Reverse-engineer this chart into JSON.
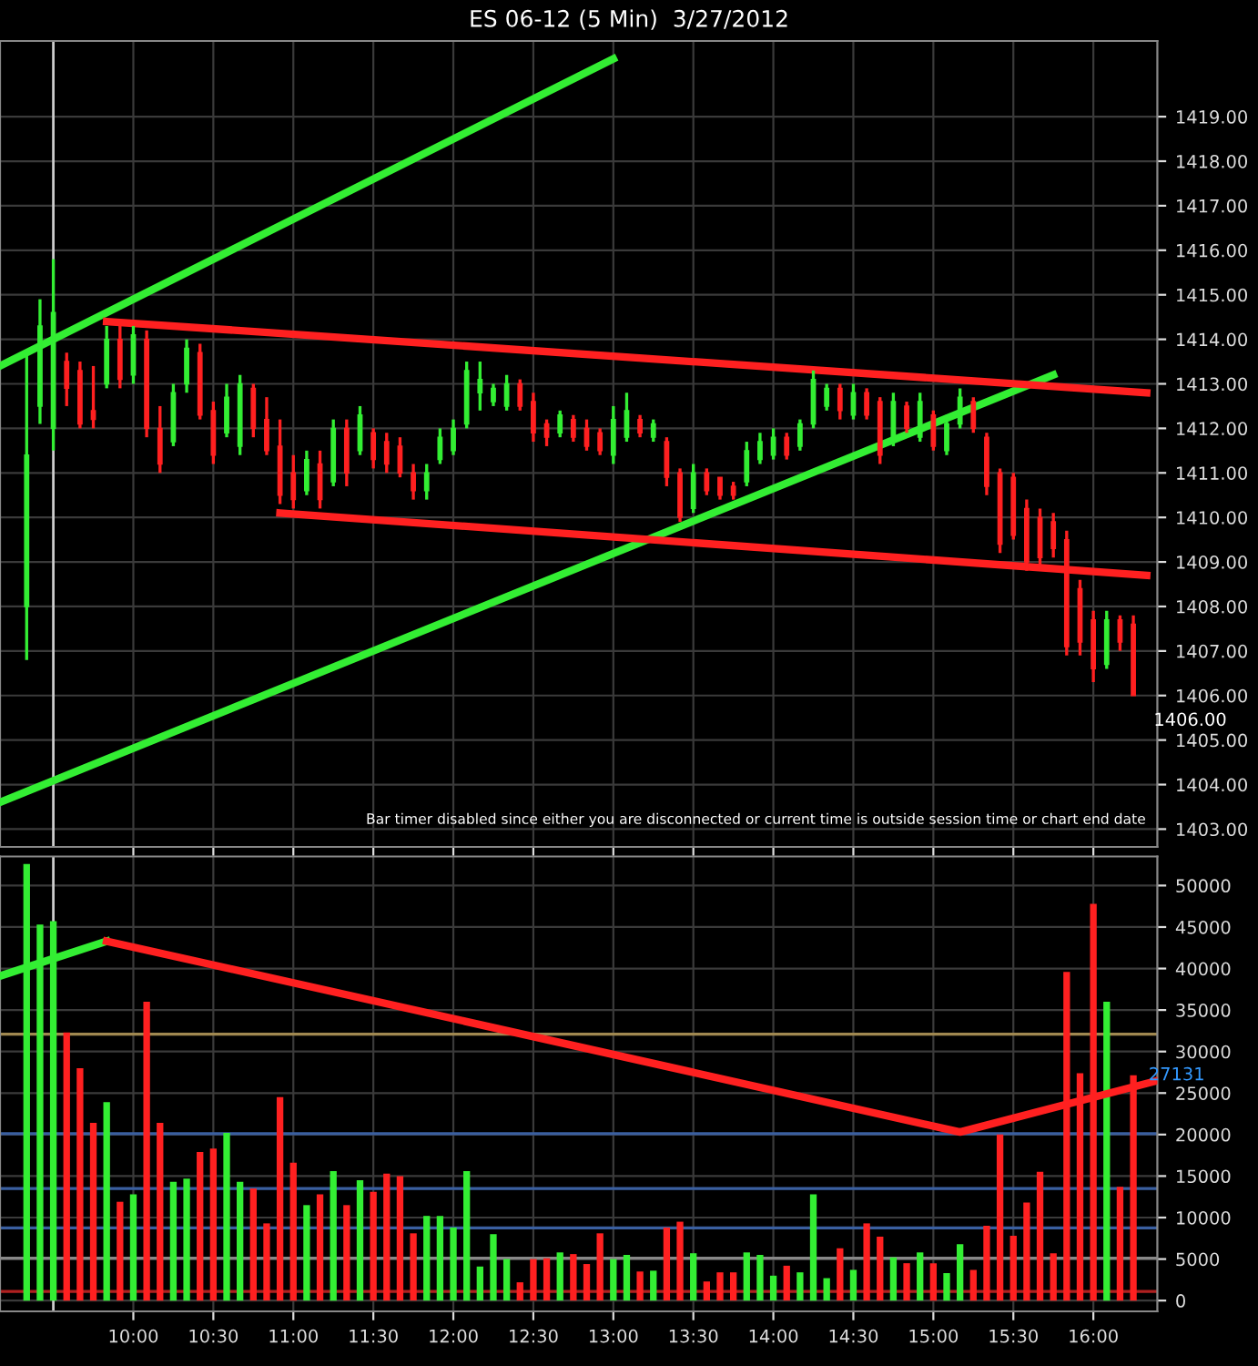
{
  "chart_data": [
    {
      "type": "candlestick",
      "title": "ES 06-12 (5 Min)  3/27/2012",
      "x": [
        "2012-03-27T09:20",
        "2012-03-27T09:25",
        "2012-03-27T09:30",
        "2012-03-27T09:35",
        "2012-03-27T09:40",
        "2012-03-27T09:45",
        "2012-03-27T09:50",
        "2012-03-27T09:55",
        "2012-03-27T10:00",
        "2012-03-27T10:05",
        "2012-03-27T10:10",
        "2012-03-27T10:15",
        "2012-03-27T10:20",
        "2012-03-27T10:25",
        "2012-03-27T10:30",
        "2012-03-27T10:35",
        "2012-03-27T10:40",
        "2012-03-27T10:45",
        "2012-03-27T10:50",
        "2012-03-27T10:55",
        "2012-03-27T11:00",
        "2012-03-27T11:05",
        "2012-03-27T11:10",
        "2012-03-27T11:15",
        "2012-03-27T11:20",
        "2012-03-27T11:25",
        "2012-03-27T11:30",
        "2012-03-27T11:35",
        "2012-03-27T11:40",
        "2012-03-27T11:45",
        "2012-03-27T11:50",
        "2012-03-27T11:55",
        "2012-03-27T12:00",
        "2012-03-27T12:05",
        "2012-03-27T12:10",
        "2012-03-27T12:15",
        "2012-03-27T12:20",
        "2012-03-27T12:25",
        "2012-03-27T12:30",
        "2012-03-27T12:35",
        "2012-03-27T12:40",
        "2012-03-27T12:45",
        "2012-03-27T12:50",
        "2012-03-27T12:55",
        "2012-03-27T13:00",
        "2012-03-27T13:05",
        "2012-03-27T13:10",
        "2012-03-27T13:15",
        "2012-03-27T13:20",
        "2012-03-27T13:25",
        "2012-03-27T13:30",
        "2012-03-27T13:35",
        "2012-03-27T13:40",
        "2012-03-27T13:45",
        "2012-03-27T13:50",
        "2012-03-27T13:55",
        "2012-03-27T14:00",
        "2012-03-27T14:05",
        "2012-03-27T14:10",
        "2012-03-27T14:15",
        "2012-03-27T14:20",
        "2012-03-27T14:25",
        "2012-03-27T14:30",
        "2012-03-27T14:35",
        "2012-03-27T14:40",
        "2012-03-27T14:45",
        "2012-03-27T14:50",
        "2012-03-27T14:55",
        "2012-03-27T15:00",
        "2012-03-27T15:05",
        "2012-03-27T15:10",
        "2012-03-27T15:15",
        "2012-03-27T15:20",
        "2012-03-27T15:25",
        "2012-03-27T15:30",
        "2012-03-27T15:35",
        "2012-03-27T15:40",
        "2012-03-27T15:45",
        "2012-03-27T15:50",
        "2012-03-27T15:55",
        "2012-03-27T16:00",
        "2012-03-27T16:05",
        "2012-03-27T16:10",
        "2012-03-27T16:15"
      ],
      "ohlc": [
        [
          1408.0,
          1413.7,
          1406.8,
          1411.4
        ],
        [
          1412.5,
          1414.9,
          1412.1,
          1414.3
        ],
        [
          1412.0,
          1415.8,
          1411.5,
          1414.6
        ],
        [
          1413.5,
          1413.7,
          1412.5,
          1412.9
        ],
        [
          1413.3,
          1413.5,
          1412.0,
          1412.1
        ],
        [
          1412.4,
          1413.4,
          1412.0,
          1412.2
        ],
        [
          1413.0,
          1414.3,
          1412.9,
          1414.0
        ],
        [
          1414.0,
          1414.3,
          1412.9,
          1413.1
        ],
        [
          1413.2,
          1414.3,
          1413.0,
          1414.1
        ],
        [
          1414.0,
          1414.2,
          1411.8,
          1412.0
        ],
        [
          1412.0,
          1412.5,
          1411.0,
          1411.2
        ],
        [
          1411.7,
          1413.0,
          1411.6,
          1412.8
        ],
        [
          1413.0,
          1414.0,
          1412.8,
          1413.8
        ],
        [
          1413.7,
          1413.9,
          1412.2,
          1412.3
        ],
        [
          1412.4,
          1412.6,
          1411.2,
          1411.4
        ],
        [
          1411.9,
          1413.0,
          1411.8,
          1412.7
        ],
        [
          1411.6,
          1413.2,
          1411.4,
          1413.0
        ],
        [
          1412.9,
          1413.0,
          1411.8,
          1412.0
        ],
        [
          1412.2,
          1412.7,
          1411.4,
          1411.5
        ],
        [
          1411.6,
          1412.2,
          1410.3,
          1410.5
        ],
        [
          1411.0,
          1411.4,
          1410.2,
          1410.4
        ],
        [
          1410.6,
          1411.5,
          1410.5,
          1411.3
        ],
        [
          1411.2,
          1411.5,
          1410.2,
          1410.4
        ],
        [
          1410.8,
          1412.2,
          1410.7,
          1412.0
        ],
        [
          1412.0,
          1412.2,
          1410.7,
          1411.0
        ],
        [
          1411.5,
          1412.5,
          1411.4,
          1412.3
        ],
        [
          1411.9,
          1412.0,
          1411.1,
          1411.3
        ],
        [
          1411.7,
          1411.9,
          1411.0,
          1411.2
        ],
        [
          1411.6,
          1411.8,
          1410.9,
          1411.0
        ],
        [
          1411.0,
          1411.2,
          1410.4,
          1410.6
        ],
        [
          1410.6,
          1411.2,
          1410.4,
          1411.0
        ],
        [
          1411.3,
          1412.0,
          1411.2,
          1411.8
        ],
        [
          1411.5,
          1412.2,
          1411.4,
          1412.0
        ],
        [
          1412.1,
          1413.5,
          1412.0,
          1413.3
        ],
        [
          1412.8,
          1413.5,
          1412.4,
          1413.1
        ],
        [
          1412.6,
          1413.0,
          1412.5,
          1412.9
        ],
        [
          1412.5,
          1413.2,
          1412.4,
          1413.0
        ],
        [
          1413.0,
          1413.1,
          1412.4,
          1412.5
        ],
        [
          1412.6,
          1412.8,
          1411.7,
          1411.9
        ],
        [
          1412.1,
          1412.2,
          1411.6,
          1411.8
        ],
        [
          1411.9,
          1412.4,
          1411.8,
          1412.3
        ],
        [
          1412.2,
          1412.3,
          1411.7,
          1411.8
        ],
        [
          1412.0,
          1412.2,
          1411.5,
          1411.6
        ],
        [
          1411.9,
          1412.0,
          1411.4,
          1411.5
        ],
        [
          1411.4,
          1412.5,
          1411.2,
          1412.2
        ],
        [
          1411.8,
          1412.8,
          1411.7,
          1412.4
        ],
        [
          1412.2,
          1412.3,
          1411.8,
          1411.9
        ],
        [
          1411.8,
          1412.2,
          1411.7,
          1412.1
        ],
        [
          1411.7,
          1411.8,
          1410.7,
          1410.9
        ],
        [
          1411.0,
          1411.1,
          1409.9,
          1410.0
        ],
        [
          1410.2,
          1411.2,
          1410.1,
          1411.0
        ],
        [
          1411.0,
          1411.1,
          1410.5,
          1410.6
        ],
        [
          1410.9,
          1410.9,
          1410.4,
          1410.5
        ],
        [
          1410.7,
          1410.8,
          1410.4,
          1410.5
        ],
        [
          1410.8,
          1411.7,
          1410.7,
          1411.5
        ],
        [
          1411.3,
          1411.9,
          1411.2,
          1411.7
        ],
        [
          1411.4,
          1412.0,
          1411.3,
          1411.8
        ],
        [
          1411.8,
          1411.9,
          1411.3,
          1411.4
        ],
        [
          1411.6,
          1412.2,
          1411.5,
          1412.1
        ],
        [
          1412.1,
          1413.3,
          1412.0,
          1413.1
        ],
        [
          1412.5,
          1413.0,
          1412.4,
          1412.9
        ],
        [
          1412.9,
          1413.0,
          1412.2,
          1412.4
        ],
        [
          1412.3,
          1413.0,
          1412.2,
          1412.8
        ],
        [
          1412.8,
          1412.9,
          1412.2,
          1412.3
        ],
        [
          1412.6,
          1412.7,
          1411.2,
          1411.4
        ],
        [
          1411.7,
          1412.8,
          1411.6,
          1412.6
        ],
        [
          1412.5,
          1412.6,
          1411.9,
          1412.0
        ],
        [
          1411.8,
          1412.8,
          1411.7,
          1412.6
        ],
        [
          1412.3,
          1412.4,
          1411.5,
          1411.6
        ],
        [
          1411.5,
          1412.3,
          1411.4,
          1412.1
        ],
        [
          1412.1,
          1412.9,
          1412.0,
          1412.7
        ],
        [
          1412.6,
          1412.7,
          1411.9,
          1412.0
        ],
        [
          1411.8,
          1411.9,
          1410.5,
          1410.7
        ],
        [
          1411.0,
          1411.1,
          1409.2,
          1409.4
        ],
        [
          1410.9,
          1411.0,
          1409.5,
          1409.6
        ],
        [
          1410.2,
          1410.4,
          1408.8,
          1409.0
        ],
        [
          1410.0,
          1410.2,
          1408.9,
          1409.1
        ],
        [
          1409.9,
          1410.1,
          1409.1,
          1409.3
        ],
        [
          1409.5,
          1409.7,
          1406.9,
          1407.1
        ],
        [
          1408.4,
          1408.6,
          1406.9,
          1407.2
        ],
        [
          1407.7,
          1407.9,
          1406.3,
          1406.6
        ],
        [
          1406.7,
          1407.9,
          1406.6,
          1407.7
        ],
        [
          1407.7,
          1407.8,
          1407.0,
          1407.2
        ],
        [
          1407.6,
          1407.8,
          1406.0,
          1406.0
        ]
      ],
      "colors": [
        "#33ee33",
        "#33ee33",
        "#33ee33",
        "#ff2020",
        "#ff2020",
        "#ff2020",
        "#33ee33",
        "#ff2020",
        "#33ee33",
        "#ff2020",
        "#ff2020",
        "#33ee33",
        "#33ee33",
        "#ff2020",
        "#ff2020",
        "#33ee33",
        "#33ee33",
        "#ff2020",
        "#ff2020",
        "#ff2020",
        "#ff2020",
        "#33ee33",
        "#ff2020",
        "#33ee33",
        "#ff2020",
        "#33ee33",
        "#ff2020",
        "#ff2020",
        "#ff2020",
        "#ff2020",
        "#33ee33",
        "#33ee33",
        "#33ee33",
        "#33ee33",
        "#33ee33",
        "#33ee33",
        "#33ee33",
        "#ff2020",
        "#ff2020",
        "#ff2020",
        "#33ee33",
        "#ff2020",
        "#ff2020",
        "#ff2020",
        "#33ee33",
        "#33ee33",
        "#ff2020",
        "#33ee33",
        "#ff2020",
        "#ff2020",
        "#33ee33",
        "#ff2020",
        "#ff2020",
        "#ff2020",
        "#33ee33",
        "#33ee33",
        "#33ee33",
        "#ff2020",
        "#33ee33",
        "#33ee33",
        "#33ee33",
        "#ff2020",
        "#33ee33",
        "#ff2020",
        "#ff2020",
        "#33ee33",
        "#ff2020",
        "#33ee33",
        "#ff2020",
        "#33ee33",
        "#33ee33",
        "#ff2020",
        "#ff2020",
        "#ff2020",
        "#ff2020",
        "#ff2020",
        "#ff2020",
        "#ff2020",
        "#ff2020",
        "#ff2020",
        "#ff2020",
        "#33ee33",
        "#ff2020",
        "#ff2020"
      ],
      "series": [
        {
          "type": "line",
          "color": "#33ee33",
          "x": [
            "2012-03-27T09:10",
            "2012-03-27T13:00"
          ],
          "values": [
            1413.4,
            1420.3
          ]
        },
        {
          "type": "line",
          "color": "#33ee33",
          "x": [
            "2012-03-27T09:10",
            "2012-03-27T15:45"
          ],
          "values": [
            1403.6,
            1413.2
          ]
        },
        {
          "type": "line",
          "color": "#ff2020",
          "x": [
            "2012-03-27T09:50",
            "2012-03-27T16:20"
          ],
          "values": [
            1414.4,
            1412.8
          ]
        },
        {
          "type": "line",
          "color": "#ff2020",
          "x": [
            "2012-03-27T10:55",
            "2012-03-27T16:20"
          ],
          "values": [
            1410.1,
            1408.7
          ]
        }
      ],
      "ref_lines": [
        {
          "axis": "x",
          "value": "2012-03-27T09:30",
          "color": "#cccccc"
        }
      ],
      "annotations": [
        {
          "text": "1406.00",
          "x": "2012-03-27T16:15",
          "y": 1406.0
        },
        "Bar timer disabled since either you are disconnected or current time is outside session time or chart end date"
      ],
      "xlim": [
        "2012-03-27T09:10",
        "2012-03-27T16:24"
      ],
      "ylim": [
        1402.6,
        1420.7
      ],
      "yticks": [
        {
          "value": 1403,
          "label": "1403.00"
        },
        {
          "value": 1404,
          "label": "1404.00"
        },
        {
          "value": 1405,
          "label": "1405.00"
        },
        {
          "value": 1406,
          "label": "1406.00"
        },
        {
          "value": 1407,
          "label": "1407.00"
        },
        {
          "value": 1408,
          "label": "1408.00"
        },
        {
          "value": 1409,
          "label": "1409.00"
        },
        {
          "value": 1410,
          "label": "1410.00"
        },
        {
          "value": 1411,
          "label": "1411.00"
        },
        {
          "value": 1412,
          "label": "1412.00"
        },
        {
          "value": 1413,
          "label": "1413.00"
        },
        {
          "value": 1414,
          "label": "1414.00"
        },
        {
          "value": 1415,
          "label": "1415.00"
        },
        {
          "value": 1416,
          "label": "1416.00"
        },
        {
          "value": 1417,
          "label": "1417.00"
        },
        {
          "value": 1418,
          "label": "1418.00"
        },
        {
          "value": 1419,
          "label": "1419.00"
        }
      ],
      "xticks": [
        {
          "value": "2012-03-27T10:00",
          "label": null
        },
        {
          "value": "2012-03-27T10:30",
          "label": null
        },
        {
          "value": "2012-03-27T11:00",
          "label": null
        },
        {
          "value": "2012-03-27T11:30",
          "label": null
        },
        {
          "value": "2012-03-27T12:00",
          "label": null
        },
        {
          "value": "2012-03-27T12:30",
          "label": null
        },
        {
          "value": "2012-03-27T13:00",
          "label": null
        },
        {
          "value": "2012-03-27T13:30",
          "label": null
        },
        {
          "value": "2012-03-27T14:00",
          "label": null
        },
        {
          "value": "2012-03-27T14:30",
          "label": null
        },
        {
          "value": "2012-03-27T15:00",
          "label": null
        },
        {
          "value": "2012-03-27T15:30",
          "label": null
        },
        {
          "value": "2012-03-27T16:00",
          "label": null
        }
      ],
      "tick_labels": "y",
      "grid": true,
      "legend": false
    },
    {
      "type": "bar",
      "series": [
        {
          "type": "bar",
          "x": [
            "2012-03-27T09:20",
            "2012-03-27T09:25",
            "2012-03-27T09:30",
            "2012-03-27T09:35",
            "2012-03-27T09:40",
            "2012-03-27T09:45",
            "2012-03-27T09:50",
            "2012-03-27T09:55",
            "2012-03-27T10:00",
            "2012-03-27T10:05",
            "2012-03-27T10:10",
            "2012-03-27T10:15",
            "2012-03-27T10:20",
            "2012-03-27T10:25",
            "2012-03-27T10:30",
            "2012-03-27T10:35",
            "2012-03-27T10:40",
            "2012-03-27T10:45",
            "2012-03-27T10:50",
            "2012-03-27T10:55",
            "2012-03-27T11:00",
            "2012-03-27T11:05",
            "2012-03-27T11:10",
            "2012-03-27T11:15",
            "2012-03-27T11:20",
            "2012-03-27T11:25",
            "2012-03-27T11:30",
            "2012-03-27T11:35",
            "2012-03-27T11:40",
            "2012-03-27T11:45",
            "2012-03-27T11:50",
            "2012-03-27T11:55",
            "2012-03-27T12:00",
            "2012-03-27T12:05",
            "2012-03-27T12:10",
            "2012-03-27T12:15",
            "2012-03-27T12:20",
            "2012-03-27T12:25",
            "2012-03-27T12:30",
            "2012-03-27T12:35",
            "2012-03-27T12:40",
            "2012-03-27T12:45",
            "2012-03-27T12:50",
            "2012-03-27T12:55",
            "2012-03-27T13:00",
            "2012-03-27T13:05",
            "2012-03-27T13:10",
            "2012-03-27T13:15",
            "2012-03-27T13:20",
            "2012-03-27T13:25",
            "2012-03-27T13:30",
            "2012-03-27T13:35",
            "2012-03-27T13:40",
            "2012-03-27T13:45",
            "2012-03-27T13:50",
            "2012-03-27T13:55",
            "2012-03-27T14:00",
            "2012-03-27T14:05",
            "2012-03-27T14:10",
            "2012-03-27T14:15",
            "2012-03-27T14:20",
            "2012-03-27T14:25",
            "2012-03-27T14:30",
            "2012-03-27T14:35",
            "2012-03-27T14:40",
            "2012-03-27T14:45",
            "2012-03-27T14:50",
            "2012-03-27T14:55",
            "2012-03-27T15:00",
            "2012-03-27T15:05",
            "2012-03-27T15:10",
            "2012-03-27T15:15",
            "2012-03-27T15:20",
            "2012-03-27T15:25",
            "2012-03-27T15:30",
            "2012-03-27T15:35",
            "2012-03-27T15:40",
            "2012-03-27T15:45",
            "2012-03-27T15:50",
            "2012-03-27T15:55",
            "2012-03-27T16:00",
            "2012-03-27T16:05",
            "2012-03-27T16:10",
            "2012-03-27T16:15"
          ],
          "values": [
            52600,
            45300,
            45700,
            32300,
            28000,
            21400,
            23900,
            11900,
            12800,
            36000,
            21400,
            14300,
            14700,
            17900,
            18300,
            20200,
            14300,
            13500,
            9300,
            24500,
            16600,
            11500,
            12800,
            15600,
            11500,
            14500,
            13100,
            15300,
            15000,
            8100,
            10200,
            10200,
            8800,
            15600,
            4100,
            8000,
            5000,
            2200,
            5000,
            5100,
            5800,
            5600,
            4400,
            8100,
            5000,
            5500,
            3500,
            3600,
            8800,
            9500,
            5700,
            2300,
            3400,
            3400,
            5800,
            5500,
            3000,
            4200,
            3400,
            12800,
            2700,
            6300,
            3700,
            9300,
            7700,
            5200,
            4500,
            5800,
            4500,
            3300,
            6800,
            3700,
            9000,
            20000,
            7800,
            11800,
            15500,
            5700,
            39600,
            27400,
            47800,
            36000,
            13700,
            27131
          ],
          "colors": [
            "#33ee33",
            "#33ee33",
            "#33ee33",
            "#ff2020",
            "#ff2020",
            "#ff2020",
            "#33ee33",
            "#ff2020",
            "#33ee33",
            "#ff2020",
            "#ff2020",
            "#33ee33",
            "#33ee33",
            "#ff2020",
            "#ff2020",
            "#33ee33",
            "#33ee33",
            "#ff2020",
            "#ff2020",
            "#ff2020",
            "#ff2020",
            "#33ee33",
            "#ff2020",
            "#33ee33",
            "#ff2020",
            "#33ee33",
            "#ff2020",
            "#ff2020",
            "#ff2020",
            "#ff2020",
            "#33ee33",
            "#33ee33",
            "#33ee33",
            "#33ee33",
            "#33ee33",
            "#33ee33",
            "#33ee33",
            "#ff2020",
            "#ff2020",
            "#ff2020",
            "#33ee33",
            "#ff2020",
            "#ff2020",
            "#ff2020",
            "#33ee33",
            "#33ee33",
            "#ff2020",
            "#33ee33",
            "#ff2020",
            "#ff2020",
            "#33ee33",
            "#ff2020",
            "#ff2020",
            "#ff2020",
            "#33ee33",
            "#33ee33",
            "#33ee33",
            "#ff2020",
            "#33ee33",
            "#33ee33",
            "#33ee33",
            "#ff2020",
            "#33ee33",
            "#ff2020",
            "#ff2020",
            "#33ee33",
            "#ff2020",
            "#33ee33",
            "#ff2020",
            "#33ee33",
            "#33ee33",
            "#ff2020",
            "#ff2020",
            "#ff2020",
            "#ff2020",
            "#ff2020",
            "#ff2020",
            "#ff2020",
            "#ff2020",
            "#ff2020",
            "#ff2020",
            "#33ee33",
            "#ff2020",
            "#ff2020"
          ]
        },
        {
          "type": "line",
          "color": "#33ee33",
          "x": [
            "2012-03-27T09:10",
            "2012-03-27T09:50"
          ],
          "values": [
            39100,
            43300
          ]
        },
        {
          "type": "line",
          "color": "#ff2020",
          "x": [
            "2012-03-27T09:50",
            "2012-03-27T15:10",
            "2012-03-27T16:24"
          ],
          "values": [
            43300,
            20300,
            26500
          ]
        }
      ],
      "ref_lines": [
        {
          "axis": "x",
          "value": "2012-03-27T09:30",
          "color": "#cccccc"
        },
        {
          "axis": "y",
          "value": 32100,
          "color": "#a08850"
        },
        {
          "axis": "y",
          "value": 20100,
          "color": "#3a5fa0"
        },
        {
          "axis": "y",
          "value": 13500,
          "color": "#3a5fa0"
        },
        {
          "axis": "y",
          "value": 8760,
          "color": "#3a5fa0"
        },
        {
          "axis": "y",
          "value": 5100,
          "color": "#888888"
        },
        {
          "axis": "y",
          "value": 1100,
          "color": "#b02020"
        }
      ],
      "annotations": [
        {
          "text": "27131",
          "x": "2012-03-27T16:15",
          "y": 27131
        }
      ],
      "xlim": [
        "2012-03-27T09:10",
        "2012-03-27T16:24"
      ],
      "ylim": [
        -1300,
        53500
      ],
      "yticks": [
        0,
        5000,
        10000,
        15000,
        20000,
        25000,
        30000,
        35000,
        40000,
        45000,
        50000
      ],
      "xticks": [
        {
          "value": "2012-03-27T10:00",
          "label": "10:00"
        },
        {
          "value": "2012-03-27T10:30",
          "label": "10:30"
        },
        {
          "value": "2012-03-27T11:00",
          "label": "11:00"
        },
        {
          "value": "2012-03-27T11:30",
          "label": "11:30"
        },
        {
          "value": "2012-03-27T12:00",
          "label": "12:00"
        },
        {
          "value": "2012-03-27T12:30",
          "label": "12:30"
        },
        {
          "value": "2012-03-27T13:00",
          "label": "13:00"
        },
        {
          "value": "2012-03-27T13:30",
          "label": "13:30"
        },
        {
          "value": "2012-03-27T14:00",
          "label": "14:00"
        },
        {
          "value": "2012-03-27T14:30",
          "label": "14:30"
        },
        {
          "value": "2012-03-27T15:00",
          "label": "15:00"
        },
        {
          "value": "2012-03-27T15:30",
          "label": "15:30"
        },
        {
          "value": "2012-03-27T16:00",
          "label": "16:00"
        }
      ],
      "grid": true,
      "legend": false
    }
  ]
}
